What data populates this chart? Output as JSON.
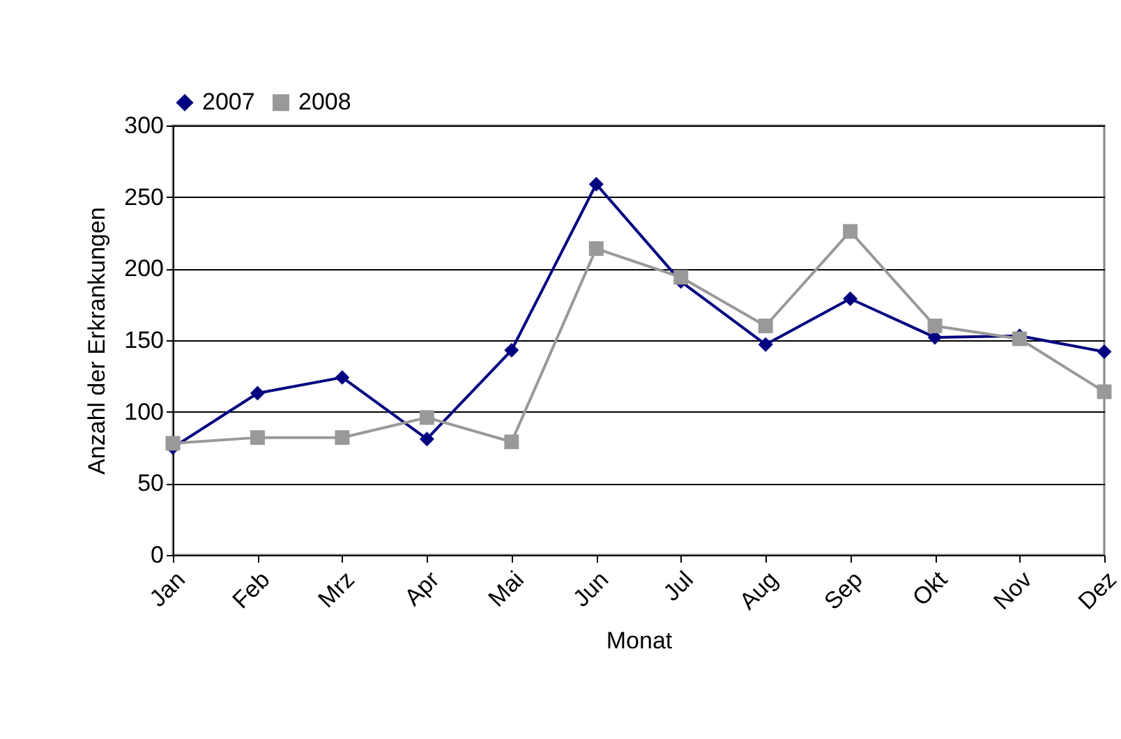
{
  "chart_data": {
    "type": "line",
    "xlabel": "Monat",
    "ylabel": "Anzahl der Erkrankungen",
    "categories": [
      "Jan",
      "Feb",
      "Mrz",
      "Apr",
      "Mai",
      "Jun",
      "Jul",
      "Aug",
      "Sep",
      "Okt",
      "Nov",
      "Dez"
    ],
    "series": [
      {
        "name": "2007",
        "color": "#000080",
        "marker": "diamond",
        "values": [
          75,
          113,
          124,
          81,
          143,
          259,
          191,
          147,
          179,
          152,
          153,
          142
        ]
      },
      {
        "name": "2008",
        "color": "#999999",
        "marker": "square",
        "values": [
          78,
          82,
          82,
          96,
          79,
          214,
          194,
          160,
          226,
          160,
          151,
          114
        ]
      }
    ],
    "ylim": [
      0,
      300
    ],
    "yticks": [
      0,
      50,
      100,
      150,
      200,
      250,
      300
    ],
    "grid": "y",
    "legend": "top",
    "line_style": "solid"
  }
}
